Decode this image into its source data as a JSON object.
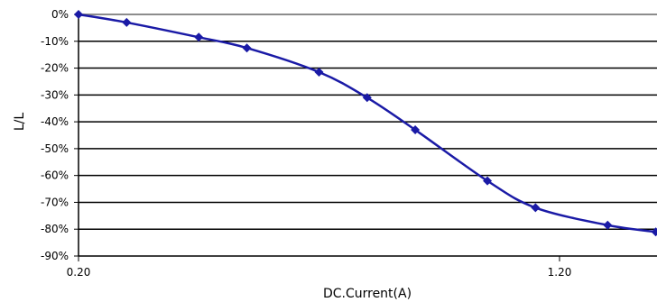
{
  "chart_data": {
    "type": "line",
    "xlabel": "DC.Current(A)",
    "ylabel": "L/L",
    "xlim": [
      0.2,
      1.4
    ],
    "ylim": [
      -90,
      0
    ],
    "x_ticks": [
      0.2,
      1.2
    ],
    "x_tick_labels": [
      "0.20",
      "1.20"
    ],
    "y_ticks": [
      0,
      -10,
      -20,
      -30,
      -40,
      -50,
      -60,
      -70,
      -80,
      -90
    ],
    "y_tick_labels": [
      "0%",
      "-10%",
      "-20%",
      "-30%",
      "-40%",
      "-50%",
      "-60%",
      "-70%",
      "-80%",
      "-90%"
    ],
    "grid": true,
    "series": [
      {
        "color": "#1a1aa6",
        "x": [
          0.2,
          0.3,
          0.45,
          0.55,
          0.7,
          0.8,
          0.9,
          1.05,
          1.15,
          1.3,
          1.4
        ],
        "values": [
          0,
          -3,
          -8.5,
          -12.5,
          -21.5,
          -31,
          -43,
          -62,
          -72,
          -78.5,
          -81
        ]
      }
    ]
  }
}
